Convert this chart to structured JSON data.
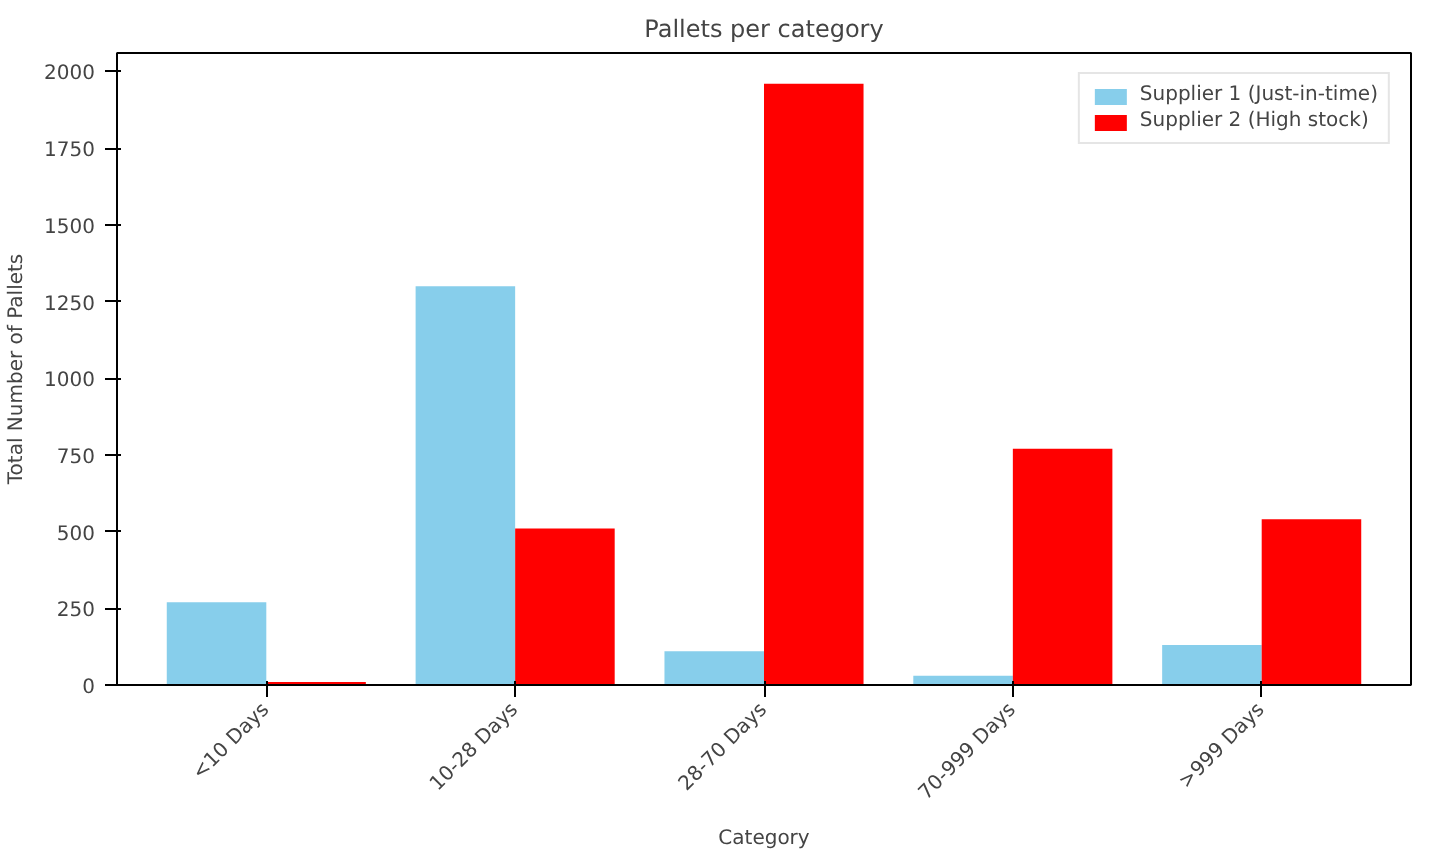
{
  "chart_data": {
    "type": "bar",
    "title": "Pallets per category",
    "xlabel": "Category",
    "ylabel": "Total Number of Pallets",
    "categories": [
      "<10 Days",
      "10-28 Days",
      "28-70 Days",
      "70-999 Days",
      ">999 Days"
    ],
    "series": [
      {
        "name": "Supplier 1 (Just-in-time)",
        "color": "#87ceeb",
        "values": [
          270,
          1300,
          110,
          30,
          130
        ]
      },
      {
        "name": "Supplier 2 (High stock)",
        "color": "#ff0000",
        "values": [
          10,
          510,
          1960,
          770,
          540
        ]
      }
    ],
    "ylim": [
      0,
      2060
    ],
    "yticks": [
      0,
      250,
      500,
      750,
      1000,
      1250,
      1500,
      1750,
      2000
    ],
    "grid": false,
    "legend": "top right"
  }
}
